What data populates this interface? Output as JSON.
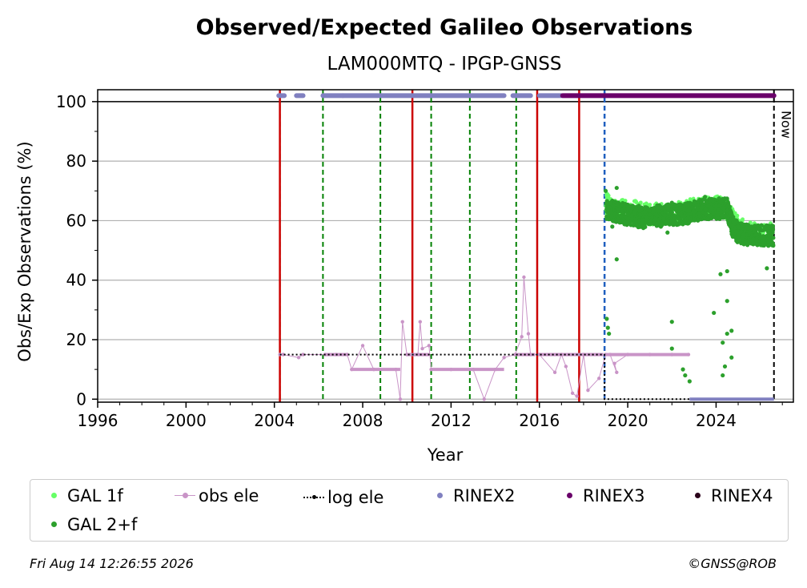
{
  "chart_data": {
    "type": "scatter",
    "title": "Observed/Expected Galileo Observations",
    "subtitle": "LAM000MTQ - IPGP-GNSS",
    "xlabel": "Year",
    "ylabel": "Obs/Exp Observations (%)",
    "xlim": [
      1996.0,
      2027.5
    ],
    "ylim": [
      -1,
      104
    ],
    "xticks": [
      1996,
      2000,
      2004,
      2008,
      2012,
      2016,
      2020,
      2024
    ],
    "yticks": [
      0,
      20,
      40,
      60,
      80,
      100
    ],
    "grid": "horizontal",
    "now_label": "Now",
    "now_x": 2026.62,
    "reference_line_y": 100,
    "vertical_lines": {
      "red_solid": [
        2004.25,
        2010.25,
        2015.9,
        2017.8
      ],
      "green_dashed": [
        2004.25,
        2006.2,
        2008.8,
        2011.1,
        2012.85,
        2014.95
      ],
      "blue_dashed": [
        2018.95
      ]
    },
    "series": [
      {
        "name": "GAL 1f",
        "color": "#66ff66",
        "description_points": [
          [
            2019.0,
            66
          ],
          [
            2019.5,
            63
          ],
          [
            2020.0,
            64
          ],
          [
            2021.0,
            62
          ],
          [
            2022.0,
            63
          ],
          [
            2023.0,
            64
          ],
          [
            2023.9,
            65
          ],
          [
            2024.5,
            64
          ],
          [
            2025.0,
            58
          ],
          [
            2026.0,
            55
          ],
          [
            2026.5,
            56
          ]
        ]
      },
      {
        "name": "obs ele",
        "color": "#c994c7",
        "points": [
          [
            2004.25,
            15
          ],
          [
            2004.4,
            15
          ],
          [
            2005.1,
            14
          ],
          [
            2005.3,
            15
          ],
          [
            2006.3,
            15
          ],
          [
            2006.8,
            15
          ],
          [
            2007.3,
            15
          ],
          [
            2007.5,
            10
          ],
          [
            2008.0,
            18
          ],
          [
            2008.5,
            10
          ],
          [
            2009.5,
            10
          ],
          [
            2009.7,
            0
          ],
          [
            2009.8,
            26
          ],
          [
            2010.0,
            15
          ],
          [
            2010.5,
            15
          ],
          [
            2010.6,
            26
          ],
          [
            2010.7,
            17
          ],
          [
            2011.0,
            18
          ],
          [
            2011.1,
            10
          ],
          [
            2012.0,
            10
          ],
          [
            2013.0,
            10
          ],
          [
            2013.5,
            0
          ],
          [
            2014.0,
            10
          ],
          [
            2014.4,
            14
          ],
          [
            2014.9,
            15
          ],
          [
            2015.2,
            21
          ],
          [
            2015.3,
            41
          ],
          [
            2015.5,
            22
          ],
          [
            2015.6,
            15
          ],
          [
            2016.0,
            15
          ],
          [
            2016.7,
            9
          ],
          [
            2017.0,
            15
          ],
          [
            2017.2,
            11
          ],
          [
            2017.5,
            2
          ],
          [
            2017.7,
            1
          ],
          [
            2018.0,
            15
          ],
          [
            2018.2,
            3
          ],
          [
            2018.7,
            7
          ],
          [
            2019.0,
            15
          ],
          [
            2019.2,
            15
          ],
          [
            2019.5,
            9
          ],
          [
            2019.4,
            12
          ],
          [
            2020.0,
            15
          ],
          [
            2021.0,
            15
          ],
          [
            2022.0,
            15
          ],
          [
            2022.75,
            15
          ]
        ]
      },
      {
        "name": "log ele",
        "color": "#000000",
        "points": [
          [
            2004.25,
            15
          ],
          [
            2018.95,
            15
          ],
          [
            2018.95,
            0
          ],
          [
            2026.62,
            0
          ]
        ]
      },
      {
        "name": "RINEX2",
        "color": "#8080c0",
        "segments": [
          [
            2004.2,
            2004.45
          ],
          [
            2005.0,
            2005.3
          ],
          [
            2006.2,
            2007.1
          ],
          [
            2007.1,
            2014.4
          ],
          [
            2014.8,
            2015.6
          ],
          [
            2016.0,
            2017.0
          ]
        ]
      },
      {
        "name": "RINEX3",
        "color": "#6a006a",
        "segments": [
          [
            2017.05,
            2026.62
          ]
        ]
      },
      {
        "name": "RINEX4",
        "color": "#2a001a",
        "segments": []
      },
      {
        "name": "GAL 2+f",
        "color": "#2ca02c",
        "points": [
          [
            2019.0,
            70
          ],
          [
            2019.05,
            66
          ],
          [
            2019.1,
            24
          ],
          [
            2019.15,
            22
          ],
          [
            2019.05,
            27
          ],
          [
            2019.3,
            58
          ],
          [
            2019.5,
            71
          ],
          [
            2019.5,
            47
          ],
          [
            2020.0,
            64
          ],
          [
            2020.5,
            60
          ],
          [
            2020.5,
            65
          ],
          [
            2021.0,
            62
          ],
          [
            2021.5,
            58
          ],
          [
            2021.8,
            56
          ],
          [
            2022.0,
            26
          ],
          [
            2022.0,
            17
          ],
          [
            2022.0,
            66
          ],
          [
            2022.5,
            10
          ],
          [
            2022.6,
            8
          ],
          [
            2022.8,
            6
          ],
          [
            2023.0,
            63
          ],
          [
            2023.5,
            68
          ],
          [
            2023.9,
            29
          ],
          [
            2024.0,
            65
          ],
          [
            2024.2,
            42
          ],
          [
            2024.3,
            19
          ],
          [
            2024.3,
            8
          ],
          [
            2024.4,
            11
          ],
          [
            2024.5,
            43
          ],
          [
            2024.5,
            33
          ],
          [
            2024.5,
            22
          ],
          [
            2024.7,
            14
          ],
          [
            2024.7,
            23
          ],
          [
            2025.0,
            58
          ],
          [
            2025.5,
            56
          ],
          [
            2026.0,
            54
          ],
          [
            2026.3,
            44
          ],
          [
            2026.5,
            56
          ]
        ]
      }
    ],
    "legend_entries": [
      "GAL 1f",
      "obs ele",
      "log ele",
      "RINEX2",
      "RINEX3",
      "RINEX4",
      "GAL 2+f"
    ],
    "legend_position": "below"
  },
  "footer": {
    "timestamp": "Fri Aug 14 12:26:55 2026",
    "credit": "©GNSS@ROB"
  }
}
